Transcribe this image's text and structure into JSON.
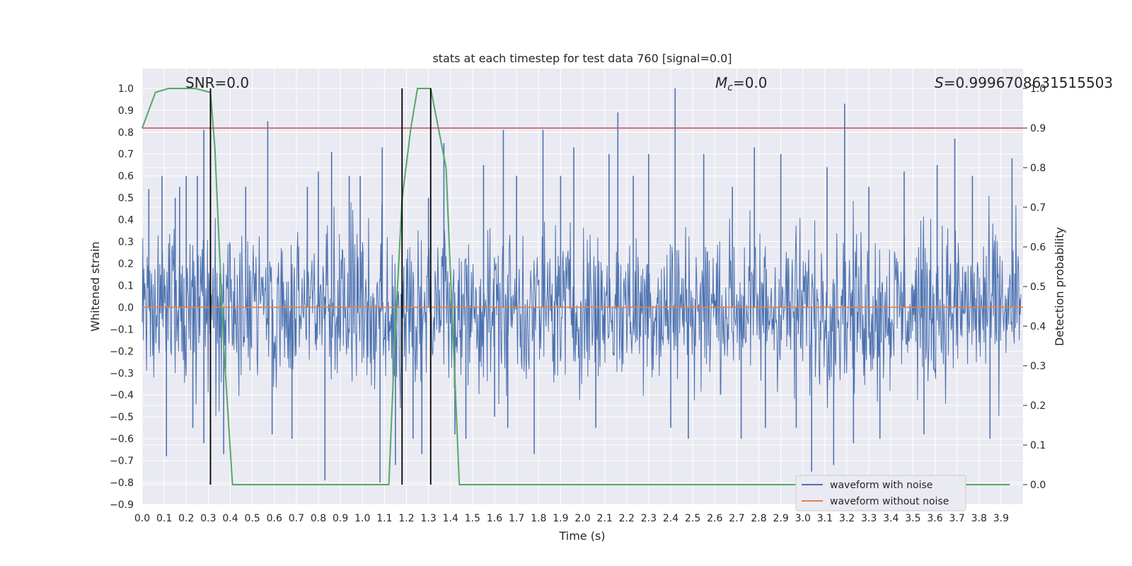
{
  "chart_data": {
    "type": "line",
    "title": "stats at each timestep for test data 760 [signal=0.0]",
    "xlabel": "Time (s)",
    "ylabel": "Whitened strain",
    "y2label": "Detection probability",
    "xlim": [
      0.0,
      4.0
    ],
    "ylim": [
      -0.9,
      1.09
    ],
    "y2lim": [
      -0.05,
      1.05
    ],
    "x_ticks": [
      0.0,
      0.1,
      0.2,
      0.3,
      0.4,
      0.5,
      0.6,
      0.7,
      0.8,
      0.9,
      1.0,
      1.1,
      1.2,
      1.3,
      1.4,
      1.5,
      1.6,
      1.7,
      1.8,
      1.9,
      2.0,
      2.1,
      2.2,
      2.3,
      2.4,
      2.5,
      2.6,
      2.7,
      2.8,
      2.9,
      3.0,
      3.1,
      3.2,
      3.3,
      3.4,
      3.5,
      3.6,
      3.7,
      3.8,
      3.9
    ],
    "y_ticks": [
      1.0,
      0.9,
      0.8,
      0.7,
      0.6,
      0.5,
      0.4,
      0.3,
      0.2,
      0.1,
      0.0,
      -0.1,
      -0.2,
      -0.3,
      -0.4,
      -0.5,
      -0.6,
      -0.7,
      -0.8,
      -0.9
    ],
    "y2_ticks": [
      1.0,
      0.9,
      0.8,
      0.7,
      0.6,
      0.5,
      0.4,
      0.3,
      0.2,
      0.1,
      0.0
    ],
    "annotations": {
      "snr": "SNR=0.0",
      "mc_symbol": "M",
      "mc_sub": "c",
      "mc_value": "=0.0",
      "s_symbol": "S",
      "s_value": "=0.9996708631515503"
    },
    "series": [
      {
        "name": "waveform with noise",
        "color": "#4c72b0",
        "x_range": [
          0.0,
          3.99
        ],
        "spikes_high": [
          [
            0.03,
            0.54
          ],
          [
            0.09,
            0.6
          ],
          [
            0.11,
            -0.68
          ],
          [
            0.15,
            0.5
          ],
          [
            0.17,
            0.55
          ],
          [
            0.2,
            0.6
          ],
          [
            0.23,
            -0.55
          ],
          [
            0.25,
            0.6
          ],
          [
            0.28,
            0.81
          ],
          [
            0.28,
            -0.62
          ],
          [
            0.31,
            0.55
          ],
          [
            0.37,
            -0.67
          ],
          [
            0.47,
            0.55
          ],
          [
            0.57,
            0.85
          ],
          [
            0.59,
            -0.58
          ],
          [
            0.68,
            -0.6
          ],
          [
            0.75,
            0.55
          ],
          [
            0.8,
            0.62
          ],
          [
            0.83,
            -0.79
          ],
          [
            0.86,
            0.71
          ],
          [
            0.94,
            0.6
          ],
          [
            0.99,
            0.6
          ],
          [
            1.08,
            -0.8
          ],
          [
            1.09,
            0.73
          ],
          [
            1.15,
            -0.72
          ],
          [
            1.23,
            -0.6
          ],
          [
            1.27,
            -0.67
          ],
          [
            1.3,
            0.5
          ],
          [
            1.37,
            0.75
          ],
          [
            1.42,
            -0.58
          ],
          [
            1.47,
            -0.6
          ],
          [
            1.55,
            0.65
          ],
          [
            1.6,
            -0.5
          ],
          [
            1.64,
            0.81
          ],
          [
            1.66,
            -0.55
          ],
          [
            1.7,
            0.6
          ],
          [
            1.78,
            -0.67
          ],
          [
            1.82,
            0.81
          ],
          [
            1.9,
            0.6
          ],
          [
            1.96,
            0.73
          ],
          [
            2.06,
            -0.55
          ],
          [
            2.12,
            0.7
          ],
          [
            2.16,
            0.89
          ],
          [
            2.23,
            0.6
          ],
          [
            2.3,
            0.7
          ],
          [
            2.4,
            -0.55
          ],
          [
            2.42,
            1.0
          ],
          [
            2.48,
            -0.6
          ],
          [
            2.55,
            0.7
          ],
          [
            2.68,
            0.55
          ],
          [
            2.72,
            -0.6
          ],
          [
            2.78,
            0.73
          ],
          [
            2.83,
            -0.55
          ],
          [
            2.9,
            0.7
          ],
          [
            2.97,
            -0.55
          ],
          [
            3.04,
            -0.75
          ],
          [
            3.11,
            0.64
          ],
          [
            3.14,
            -0.72
          ],
          [
            3.19,
            0.93
          ],
          [
            3.23,
            -0.62
          ],
          [
            3.3,
            0.55
          ],
          [
            3.35,
            -0.6
          ],
          [
            3.46,
            0.62
          ],
          [
            3.55,
            -0.58
          ],
          [
            3.61,
            0.65
          ],
          [
            3.69,
            0.77
          ],
          [
            3.77,
            0.6
          ],
          [
            3.85,
            -0.6
          ],
          [
            3.95,
            0.68
          ]
        ]
      },
      {
        "name": "waveform without noise",
        "color": "#dd8452",
        "x": [
          0.0,
          4.0
        ],
        "y": [
          0.0,
          0.0
        ]
      },
      {
        "name": "",
        "color": "#55a868",
        "axis": "right",
        "x": [
          0.0,
          0.06,
          0.12,
          0.18,
          0.24,
          0.31,
          0.33,
          0.37,
          0.41,
          0.5,
          0.7,
          0.9,
          1.0,
          1.08,
          1.12,
          1.15,
          1.18,
          1.22,
          1.25,
          1.3,
          1.31,
          1.38,
          1.44,
          1.5,
          2.0,
          3.0,
          3.94
        ],
        "y": [
          0.9,
          0.99,
          1.0,
          1.0,
          1.0,
          0.99,
          0.85,
          0.35,
          0.0,
          0.0,
          0.0,
          0.0,
          0.0,
          0.0,
          0.0,
          0.4,
          0.72,
          0.9,
          1.0,
          1.0,
          1.0,
          0.8,
          0.0,
          0.0,
          0.0,
          0.0,
          0.0
        ]
      }
    ],
    "threshold": {
      "color": "#c44e52",
      "value": 0.9,
      "axis": "right"
    },
    "vlines": {
      "color": "#000000",
      "x": [
        0.31,
        1.18,
        1.31
      ],
      "ymin": 0.0,
      "ymax": 1.0,
      "axis": "right"
    },
    "legend": {
      "position": "bottom-right",
      "entries": [
        "waveform with noise",
        "waveform without noise"
      ]
    },
    "grid": true
  }
}
